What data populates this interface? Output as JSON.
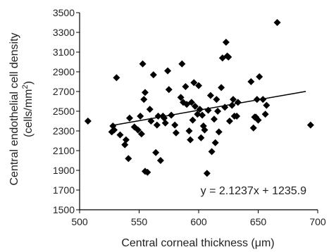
{
  "chart_data": {
    "type": "scatter",
    "xlabel": "Central corneal thickness (μm)",
    "ylabel_line1": "Central endothelial cell density",
    "ylabel_line2": "(cells/mm",
    "ylabel_sup": "2",
    "ylabel_close": ")",
    "xlim": [
      500,
      700
    ],
    "ylim": [
      1500,
      3500
    ],
    "xticks": [
      500,
      550,
      600,
      650,
      700
    ],
    "yticks": [
      1500,
      1700,
      1900,
      2100,
      2300,
      2500,
      2700,
      2900,
      3100,
      3300,
      3500
    ],
    "grid": false,
    "marker": "diamond",
    "marker_color": "#000000",
    "trendline": {
      "slope": 2.1237,
      "intercept": 1235.9,
      "x_range": [
        528,
        690
      ]
    },
    "annotation": "y = 2.1237x + 1235.9",
    "points": [
      [
        507,
        2400
      ],
      [
        527,
        2290
      ],
      [
        528,
        2350
      ],
      [
        529,
        2310
      ],
      [
        531,
        2840
      ],
      [
        534,
        2260
      ],
      [
        538,
        2160
      ],
      [
        539,
        2210
      ],
      [
        541,
        2020
      ],
      [
        542,
        2430
      ],
      [
        546,
        2340
      ],
      [
        549,
        2310
      ],
      [
        551,
        2450
      ],
      [
        552,
        2270
      ],
      [
        553,
        2980
      ],
      [
        554,
        2620
      ],
      [
        555,
        2690
      ],
      [
        555,
        1890
      ],
      [
        557,
        1880
      ],
      [
        559,
        2520
      ],
      [
        560,
        2400
      ],
      [
        562,
        2870
      ],
      [
        564,
        2080
      ],
      [
        565,
        2360
      ],
      [
        566,
        2450
      ],
      [
        568,
        2000
      ],
      [
        570,
        2450
      ],
      [
        571,
        2430
      ],
      [
        572,
        2380
      ],
      [
        574,
        2910
      ],
      [
        575,
        2720
      ],
      [
        577,
        2460
      ],
      [
        580,
        2360
      ],
      [
        581,
        2280
      ],
      [
        585,
        2640
      ],
      [
        586,
        2980
      ],
      [
        587,
        2590
      ],
      [
        589,
        2750
      ],
      [
        590,
        2570
      ],
      [
        592,
        2300
      ],
      [
        593,
        2210
      ],
      [
        594,
        2590
      ],
      [
        595,
        2410
      ],
      [
        596,
        2790
      ],
      [
        597,
        2550
      ],
      [
        599,
        2470
      ],
      [
        600,
        2760
      ],
      [
        601,
        2520
      ],
      [
        602,
        2230
      ],
      [
        603,
        2460
      ],
      [
        604,
        2350
      ],
      [
        605,
        2310
      ],
      [
        607,
        1870
      ],
      [
        608,
        2510
      ],
      [
        610,
        2660
      ],
      [
        611,
        2090
      ],
      [
        613,
        2420
      ],
      [
        614,
        2180
      ],
      [
        615,
        2620
      ],
      [
        616,
        2500
      ],
      [
        617,
        2290
      ],
      [
        619,
        2740
      ],
      [
        620,
        3040
      ],
      [
        622,
        2540
      ],
      [
        623,
        3200
      ],
      [
        624,
        3060
      ],
      [
        625,
        3050
      ],
      [
        626,
        2400
      ],
      [
        628,
        2560
      ],
      [
        629,
        2620
      ],
      [
        630,
        2450
      ],
      [
        632,
        2450
      ],
      [
        633,
        2590
      ],
      [
        644,
        2800
      ],
      [
        646,
        2330
      ],
      [
        647,
        2440
      ],
      [
        648,
        2440
      ],
      [
        649,
        2620
      ],
      [
        650,
        2410
      ],
      [
        651,
        2850
      ],
      [
        654,
        2620
      ],
      [
        656,
        2470
      ],
      [
        657,
        2560
      ],
      [
        666,
        3400
      ],
      [
        694,
        2360
      ]
    ]
  }
}
